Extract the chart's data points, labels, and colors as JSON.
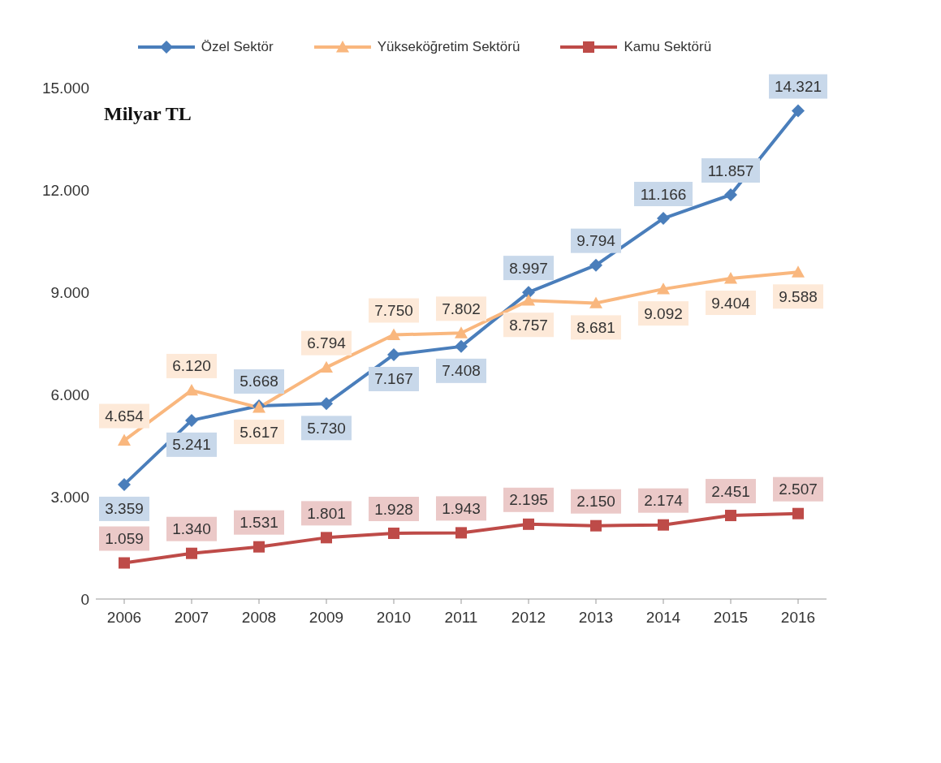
{
  "chart_data": {
    "type": "line",
    "categories": [
      "2006",
      "2007",
      "2008",
      "2009",
      "2010",
      "2011",
      "2012",
      "2013",
      "2014",
      "2015",
      "2016"
    ],
    "series": [
      {
        "name": "Özel Sektör",
        "color": "#4a7ebb",
        "marker": "diamond",
        "values": [
          3359,
          5241,
          5668,
          5730,
          7167,
          7408,
          8997,
          9794,
          11166,
          11857,
          14321
        ],
        "value_labels": [
          "3.359",
          "5.241",
          "5.668",
          "5.730",
          "7.167",
          "7.408",
          "8.997",
          "9.794",
          "11.166",
          "11.857",
          "14.321"
        ]
      },
      {
        "name": "Yükseköğretim Sektörü",
        "color": "#f9b77e",
        "marker": "triangle",
        "values": [
          4654,
          6120,
          5617,
          6794,
          7750,
          7802,
          8757,
          8681,
          9092,
          9404,
          9588
        ],
        "value_labels": [
          "4.654",
          "6.120",
          "5.617",
          "6.794",
          "7.750",
          "7.802",
          "8.757",
          "8.681",
          "9.092",
          "9.404",
          "9.588"
        ]
      },
      {
        "name": "Kamu Sektörü",
        "color": "#be4b48",
        "marker": "square",
        "values": [
          1059,
          1340,
          1531,
          1801,
          1928,
          1943,
          2195,
          2150,
          2174,
          2451,
          2507
        ],
        "value_labels": [
          "1.059",
          "1.340",
          "1.531",
          "1.801",
          "1.928",
          "1.943",
          "2.195",
          "2.150",
          "2.174",
          "2.451",
          "2.507"
        ]
      }
    ],
    "ylim": [
      0,
      15000
    ],
    "yticks": [
      {
        "value": 0,
        "label": "0"
      },
      {
        "value": 3000,
        "label": "3.000"
      },
      {
        "value": 6000,
        "label": "6.000"
      },
      {
        "value": 9000,
        "label": "9.000"
      },
      {
        "value": 12000,
        "label": "12.000"
      },
      {
        "value": 15000,
        "label": "15.000"
      }
    ],
    "grid": false,
    "legend": "top",
    "line_style": "solid",
    "annotations": [
      "Milyar TL"
    ]
  }
}
